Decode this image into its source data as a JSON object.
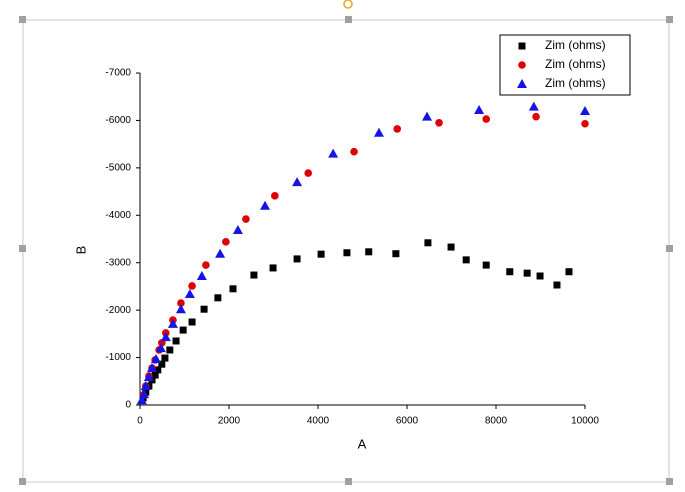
{
  "chart_data": {
    "type": "scatter",
    "x_label": "A",
    "y_label": "B",
    "xlim": [
      0,
      10000
    ],
    "xticks": [
      0,
      2000,
      4000,
      6000,
      8000,
      10000
    ],
    "ylim": [
      0,
      -7000
    ],
    "yticks": [
      0,
      -1000,
      -2000,
      -3000,
      -4000,
      -5000,
      -6000,
      -7000
    ],
    "legend": "upper right",
    "series": [
      {
        "name": "Zim (ohms)",
        "color": "#000000",
        "marker": "square",
        "x": [
          70,
          130,
          200,
          270,
          340,
          400,
          490,
          560,
          670,
          810,
          970,
          1170,
          1440,
          1750,
          2090,
          2560,
          2990,
          3530,
          4070,
          4650,
          5140,
          5750,
          6470,
          6990,
          7330,
          7780,
          8310,
          8700,
          8990,
          9370,
          9640
        ],
        "values": [
          -150,
          -270,
          -400,
          -530,
          -630,
          -740,
          -860,
          -990,
          -1160,
          -1350,
          -1580,
          -1750,
          -2020,
          -2260,
          -2450,
          -2740,
          -2890,
          -3080,
          -3180,
          -3210,
          -3230,
          -3190,
          -3420,
          -3330,
          -3060,
          -2950,
          -2810,
          -2780,
          -2720,
          -2530,
          -2810
        ]
      },
      {
        "name": "Zim (ohms)",
        "color": "#e00000",
        "marker": "circle",
        "x": [
          70,
          130,
          200,
          270,
          340,
          430,
          490,
          580,
          740,
          920,
          1170,
          1480,
          1930,
          2380,
          3030,
          3780,
          4810,
          5780,
          6720,
          7780,
          8900,
          10000
        ],
        "values": [
          -210,
          -400,
          -610,
          -780,
          -950,
          -1160,
          -1310,
          -1520,
          -1790,
          -2150,
          -2510,
          -2950,
          -3440,
          -3920,
          -4410,
          -4890,
          -5340,
          -5820,
          -5950,
          -6030,
          -6080,
          -5930
        ]
      },
      {
        "name": "Zim (ohms)",
        "color": "#1414e6",
        "marker": "triangle",
        "x": [
          40,
          90,
          130,
          200,
          270,
          360,
          470,
          580,
          740,
          920,
          1120,
          1390,
          1800,
          2200,
          2810,
          3530,
          4340,
          5370,
          6450,
          7620,
          8850,
          10000
        ],
        "values": [
          -100,
          -230,
          -400,
          -590,
          -780,
          -970,
          -1200,
          -1430,
          -1710,
          -2020,
          -2340,
          -2720,
          -3190,
          -3690,
          -4200,
          -4700,
          -5300,
          -5740,
          -6080,
          -6220,
          -6290,
          -6200
        ]
      }
    ]
  }
}
